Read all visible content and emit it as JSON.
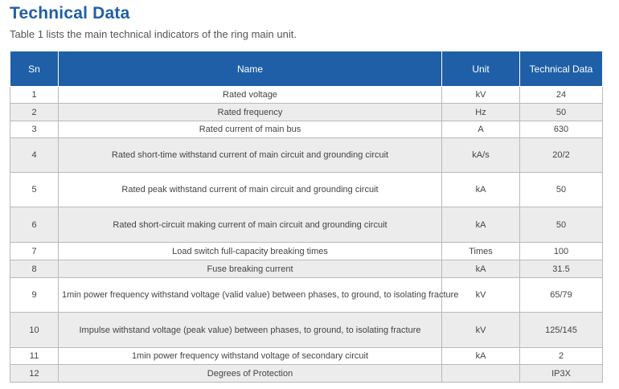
{
  "heading": "Technical Data",
  "subtitle": "Table 1 lists the main technical indicators of the ring main unit.",
  "columns": [
    "Sn",
    "Name",
    "Unit",
    "Technical Data"
  ],
  "rows": [
    {
      "sn": "1",
      "name": "Rated voltage",
      "unit": "kV",
      "value": "24"
    },
    {
      "sn": "2",
      "name": "Rated frequency",
      "unit": "Hz",
      "value": "50"
    },
    {
      "sn": "3",
      "name": "Rated current of main bus",
      "unit": "A",
      "value": "630"
    },
    {
      "sn": "4",
      "name": "Rated short-time withstand current of main circuit and grounding circuit",
      "unit": "kA/s",
      "value": "20/2"
    },
    {
      "sn": "5",
      "name": "Rated peak withstand current of main circuit and grounding circuit",
      "unit": "kA",
      "value": "50"
    },
    {
      "sn": "6",
      "name": "Rated short-circuit making current of main circuit and grounding circuit",
      "unit": "kA",
      "value": "50"
    },
    {
      "sn": "7",
      "name": "Load switch full-capacity breaking times",
      "unit": "Times",
      "value": "100"
    },
    {
      "sn": "8",
      "name": "Fuse breaking current",
      "unit": "kA",
      "value": "31.5"
    },
    {
      "sn": "9",
      "name": "1min power frequency withstand voltage (valid value) between phases, to ground, to isolating fracture",
      "unit": "kV",
      "value": "65/79"
    },
    {
      "sn": "10",
      "name": "Impulse withstand voltage (peak value) between phases, to ground, to isolating fracture",
      "unit": "kV",
      "value": "125/145"
    },
    {
      "sn": "11",
      "name": "1min power frequency withstand voltage of secondary circuit",
      "unit": "kA",
      "value": "2"
    },
    {
      "sn": "12",
      "name": "Degrees of Protection",
      "unit": "",
      "value": "IP3X"
    }
  ],
  "colors": {
    "accent": "#1f5fa8",
    "row_alt": "#ececec",
    "border": "#b9b9b9"
  }
}
